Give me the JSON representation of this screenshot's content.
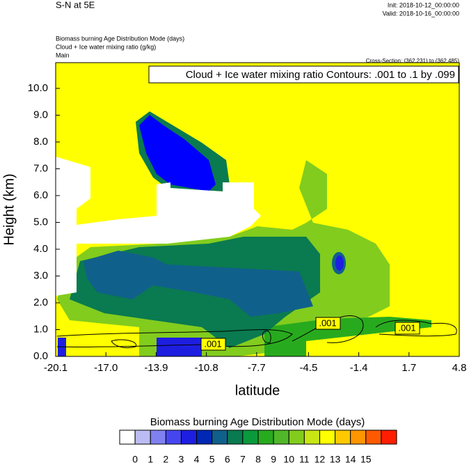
{
  "chart_data": {
    "type": "contour",
    "title": "S-N at 5E",
    "init": "Init: 2018-10-12_00:00:00",
    "valid": "Valid: 2018-10-16_00:00:00",
    "field_title": "Biomass burning Age Distribution Mode   (days)",
    "contour_title": "Cloud + Ice water mixing ratio   (g/kg)",
    "domain": "Main",
    "cross_section": "Cross-Section: (362,231) to (362,485)",
    "contour_note": "Cloud + Ice water mixing ratio Contours: .001 to .1 by .099",
    "contour_labels": [
      ".001",
      ".001",
      ".001"
    ],
    "x_label": "latitude",
    "y_label": "Height (km)",
    "xlim": [
      -20.1,
      4.8
    ],
    "ylim": [
      0,
      10.96
    ],
    "xticks": [
      {
        "value": -20.1,
        "label": "-20.1"
      },
      {
        "value": -17,
        "label": "-17.0"
      },
      {
        "value": -13.9,
        "label": "-13.9"
      },
      {
        "value": -10.8,
        "label": "-10.8"
      },
      {
        "value": -7.7,
        "label": "-7.7"
      },
      {
        "value": -4.5,
        "label": "-4.5"
      },
      {
        "value": -1.4,
        "label": "-1.4"
      },
      {
        "value": 1.7,
        "label": "1.7"
      },
      {
        "value": 4.8,
        "label": "4.8"
      }
    ],
    "yticks": [
      {
        "value": 0,
        "label": "0.0"
      },
      {
        "value": 1,
        "label": "1.0"
      },
      {
        "value": 2,
        "label": "2.0"
      },
      {
        "value": 3,
        "label": "3.0"
      },
      {
        "value": 4,
        "label": "4.0"
      },
      {
        "value": 5,
        "label": "5.0"
      },
      {
        "value": 6,
        "label": "6.0"
      },
      {
        "value": 7,
        "label": "7.0"
      },
      {
        "value": 8,
        "label": "8.0"
      },
      {
        "value": 9,
        "label": "9.0"
      },
      {
        "value": 10,
        "label": "10.0"
      }
    ],
    "colorbar": {
      "title": "Biomass burning Age Distribution Mode  (days)",
      "levels": [
        0,
        1,
        2,
        3,
        4,
        5,
        6,
        7,
        8,
        9,
        10,
        11,
        12,
        13,
        14,
        15
      ],
      "colors": [
        "#ffffff",
        "#bcbcf5",
        "#8080f0",
        "#4646f0",
        "#1e1ee0",
        "#0028b4",
        "#10608c",
        "#0a7a50",
        "#0a9a3c",
        "#28aa1e",
        "#50b828",
        "#82cc1e",
        "#c8e614",
        "#ffff00",
        "#ffc800",
        "#ff9600",
        "#ff5a00",
        "#ff1e00"
      ]
    }
  }
}
